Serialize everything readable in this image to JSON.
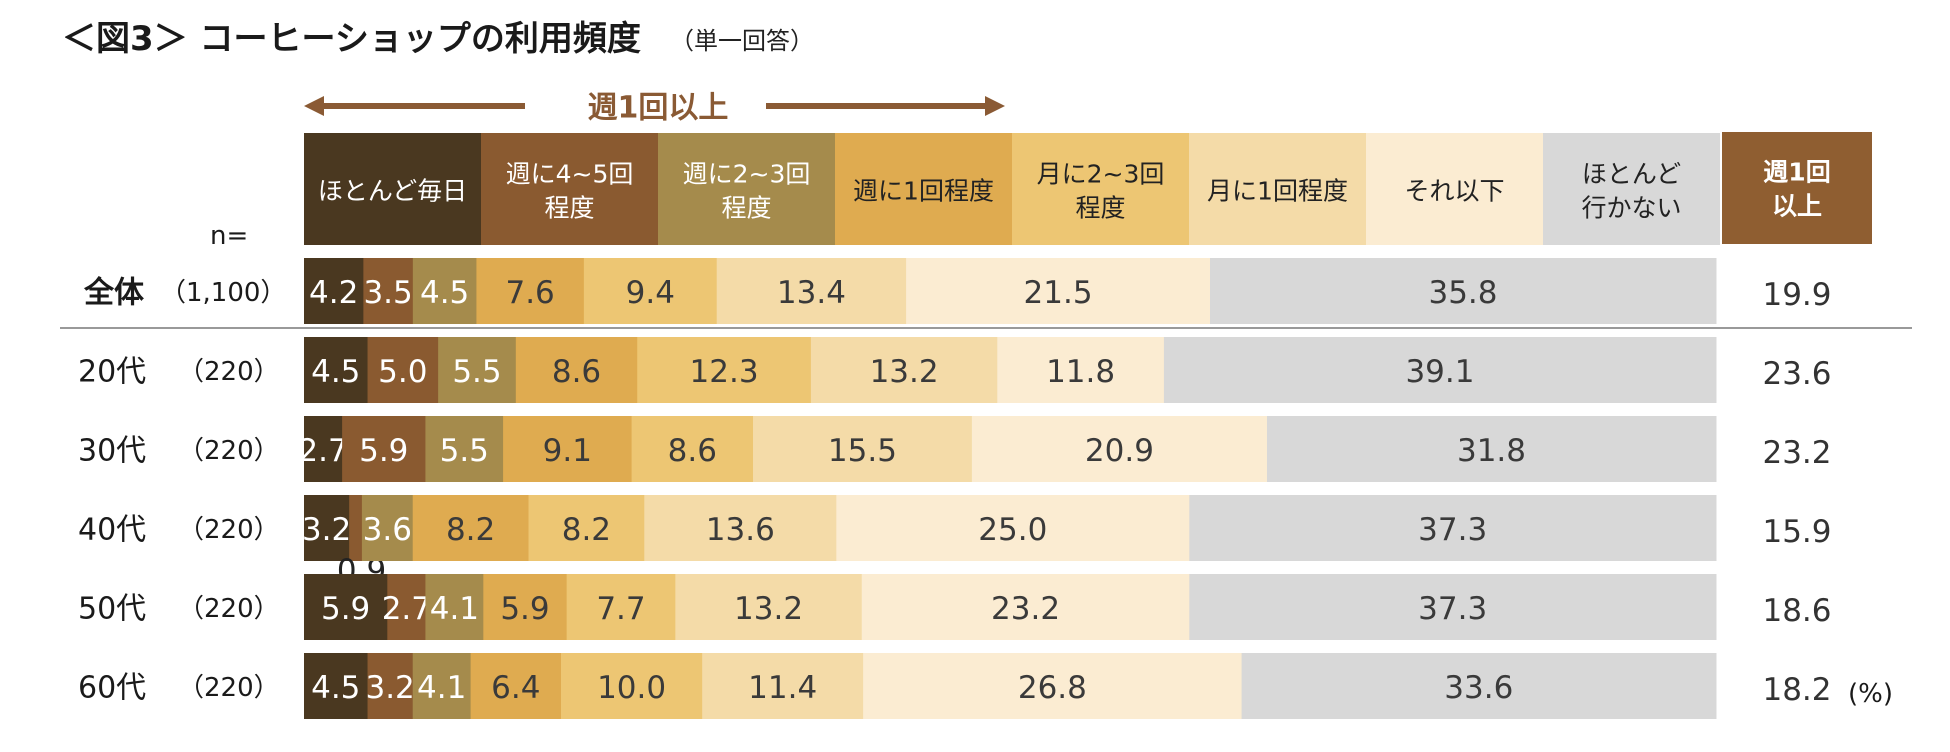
{
  "title": "＜図3＞ コーヒーショップの利用頻度",
  "subtitle": "（単一回答）",
  "arrow_label": "週1回以上",
  "n_header": "n=",
  "unit_label": "(%)",
  "colors": [
    "#4a3820",
    "#8a5a30",
    "#a58b4c",
    "#dfab50",
    "#edc673",
    "#f4dba8",
    "#fbecd2",
    "#d8d8d8",
    "#8f5e31"
  ],
  "categories": [
    {
      "lines": [
        "ほとんど毎日"
      ]
    },
    {
      "lines": [
        "週に4~5回",
        "程度"
      ]
    },
    {
      "lines": [
        "週に2~3回",
        "程度"
      ]
    },
    {
      "lines": [
        "週に1回程度"
      ]
    },
    {
      "lines": [
        "月に2~3回",
        "程度"
      ]
    },
    {
      "lines": [
        "月に1回程度"
      ]
    },
    {
      "lines": [
        "それ以下"
      ]
    },
    {
      "lines": [
        "ほとんど",
        "行かない"
      ]
    }
  ],
  "weekly_header": [
    "週1回",
    "以上"
  ],
  "chart_data": {
    "type": "bar",
    "orientation": "horizontal",
    "stacked": true,
    "title": "コーヒーショップの利用頻度",
    "unit": "%",
    "series_names": [
      "ほとんど毎日",
      "週に4~5回程度",
      "週に2~3回程度",
      "週に1回程度",
      "月に2~3回程度",
      "月に1回程度",
      "それ以下",
      "ほとんど行かない"
    ],
    "rows": [
      {
        "label": "全体",
        "n": "（1,100）",
        "bold": true,
        "values": [
          4.2,
          3.5,
          4.5,
          7.6,
          9.4,
          13.4,
          21.5,
          35.8
        ],
        "weekly": "19.9"
      },
      {
        "label": "20代",
        "n": "（220）",
        "values": [
          4.5,
          5.0,
          5.5,
          8.6,
          12.3,
          13.2,
          11.8,
          39.1
        ],
        "weekly": "23.6"
      },
      {
        "label": "30代",
        "n": "（220）",
        "values": [
          2.7,
          5.9,
          5.5,
          9.1,
          8.6,
          15.5,
          20.9,
          31.8
        ],
        "weekly": "23.2"
      },
      {
        "label": "40代",
        "n": "（220）",
        "values": [
          3.2,
          0.9,
          3.6,
          8.2,
          8.2,
          13.6,
          25.0,
          37.3
        ],
        "weekly": "15.9"
      },
      {
        "label": "50代",
        "n": "（220）",
        "values": [
          5.9,
          2.7,
          4.1,
          5.9,
          7.7,
          13.2,
          23.2,
          37.3
        ],
        "weekly": "18.6"
      },
      {
        "label": "60代",
        "n": "（220）",
        "values": [
          4.5,
          3.2,
          4.1,
          6.4,
          10.0,
          11.4,
          26.8,
          33.6
        ],
        "weekly": "18.2"
      }
    ]
  }
}
